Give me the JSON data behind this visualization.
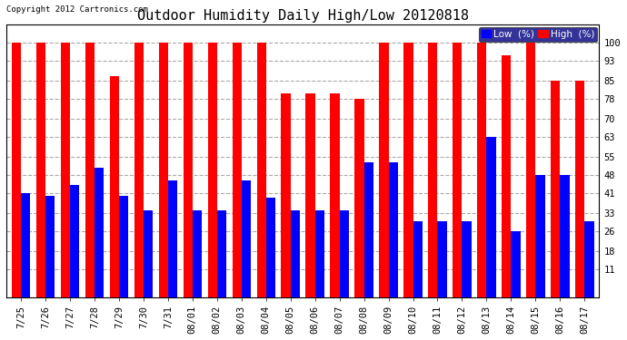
{
  "title": "Outdoor Humidity Daily High/Low 20120818",
  "copyright": "Copyright 2012 Cartronics.com",
  "dates": [
    "7/25",
    "7/26",
    "7/27",
    "7/28",
    "7/29",
    "7/30",
    "7/31",
    "08/01",
    "08/02",
    "08/03",
    "08/04",
    "08/05",
    "08/06",
    "08/07",
    "08/08",
    "08/09",
    "08/10",
    "08/11",
    "08/12",
    "08/13",
    "08/14",
    "08/15",
    "08/16",
    "08/17"
  ],
  "high": [
    100,
    100,
    100,
    100,
    87,
    100,
    100,
    100,
    100,
    100,
    100,
    80,
    80,
    80,
    78,
    100,
    100,
    100,
    100,
    100,
    95,
    100,
    85,
    85
  ],
  "low": [
    41,
    40,
    44,
    51,
    40,
    34,
    46,
    34,
    34,
    46,
    39,
    34,
    34,
    34,
    53,
    53,
    30,
    30,
    30,
    63,
    26,
    48,
    48,
    30
  ],
  "ylim": [
    0,
    107
  ],
  "yticks": [
    11,
    18,
    26,
    33,
    41,
    48,
    55,
    63,
    70,
    78,
    85,
    93,
    100
  ],
  "bg_color": "#ffffff",
  "plot_bg": "#ffffff",
  "high_color": "#ff0000",
  "low_color": "#0000ff",
  "grid_color": "#aaaaaa",
  "bar_width": 0.38,
  "title_fontsize": 11,
  "tick_fontsize": 7.5,
  "legend_fontsize": 7.5
}
